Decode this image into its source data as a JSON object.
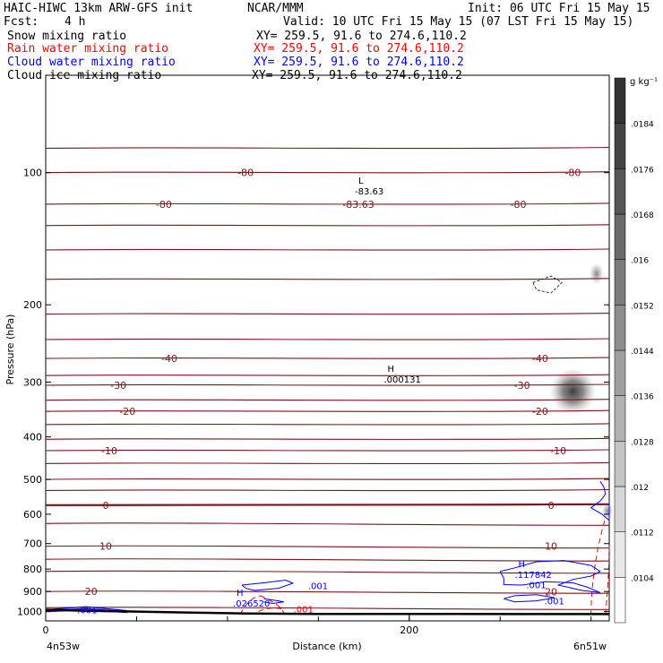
{
  "header": {
    "title_left": "HAIC-HIWC 13km ARW-GFS init",
    "title_center": "NCAR/MMM",
    "init": "Init: 06 UTC Fri 15 May 15",
    "fcst_label": "Fcst:",
    "fcst_value": "4 h",
    "valid": "Valid: 10 UTC Fri 15 May 15 (07 LST Fri 15 May 15)",
    "fields": [
      {
        "name": "Snow mixing ratio",
        "xy": "XY= 259.5, 91.6 to 274.6,110.2",
        "color": "#000000"
      },
      {
        "name": "Rain water mixing ratio",
        "xy": "XY= 259.5, 91.6 to 274.6,110.2",
        "color": "#ff0000"
      },
      {
        "name": "Cloud water mixing ratio",
        "xy": "XY= 259.5, 91.6 to 274.6,110.2",
        "color": "#0000ff"
      },
      {
        "name": "Cloud ice mixing ratio",
        "xy": "XY= 259.5, 91.6 to 274.6,110.2",
        "color": "#000000"
      }
    ]
  },
  "chart_data": {
    "type": "cross-section",
    "xlabel": "Distance (km)",
    "ylabel": "Pressure (hPa)",
    "xlim": [
      0,
      310
    ],
    "ylim": [
      1050,
      60
    ],
    "x_ticks": [
      0,
      200
    ],
    "x_minor_step": 50,
    "y_ticks": [
      100,
      200,
      300,
      400,
      500,
      600,
      700,
      800,
      900,
      1000
    ],
    "endpoint_left": "4n53w",
    "endpoint_right": "6n51w",
    "colorbar": {
      "unit": "g kg⁻¹",
      "levels": [
        0.0104,
        0.0112,
        0.012,
        0.0128,
        0.0136,
        0.0144,
        0.0152,
        0.016,
        0.0168,
        0.0176,
        0.0184
      ],
      "level_labels": [
        ".0104",
        ".0112",
        ".012",
        ".0128",
        ".0136",
        ".0144",
        ".0152",
        ".016",
        ".0168",
        ".0176",
        ".0184"
      ]
    },
    "temperature_isotherms": [
      {
        "value": -80,
        "pressure": 100
      },
      {
        "value": -80,
        "pressure": 118
      },
      {
        "value": -40,
        "pressure": 265
      },
      {
        "value": -30,
        "pressure": 305
      },
      {
        "value": -20,
        "pressure": 350
      },
      {
        "value": -10,
        "pressure": 430
      },
      {
        "value": 0,
        "pressure": 572
      },
      {
        "value": 10,
        "pressure": 710
      },
      {
        "value": 20,
        "pressure": 900
      }
    ],
    "isotherm_labels": [
      "-80",
      "-80",
      "-40",
      "-30",
      "-20",
      "-10",
      "0",
      "10",
      "20",
      "-83.63",
      "-80",
      "-40",
      "-30",
      "-20",
      "-10",
      "0",
      "10",
      "20",
      "-80"
    ],
    "extrema": [
      {
        "type": "L",
        "value": "-83.63",
        "x": 172,
        "p": 110
      },
      {
        "type": "H",
        "value": ".000131",
        "x": 188,
        "p": 295
      },
      {
        "type": "H",
        "value": ".117842",
        "x": 260,
        "p": 822
      },
      {
        "type": "H",
        "value": ".026520",
        "x": 105,
        "p": 955
      }
    ],
    "contour_labels": [
      ".001",
      ".001",
      ".001",
      ".001",
      ".001"
    ],
    "series": [
      {
        "name": "Snow mixing ratio",
        "max": 0.0184,
        "center_x": 290,
        "center_p": 315
      },
      {
        "name": "Rain water mixing ratio",
        "contour_level": 0.001
      },
      {
        "name": "Cloud water mixing ratio",
        "contour_level": 0.001
      },
      {
        "name": "Cloud ice mixing ratio",
        "contour_level": 0.001
      }
    ]
  }
}
